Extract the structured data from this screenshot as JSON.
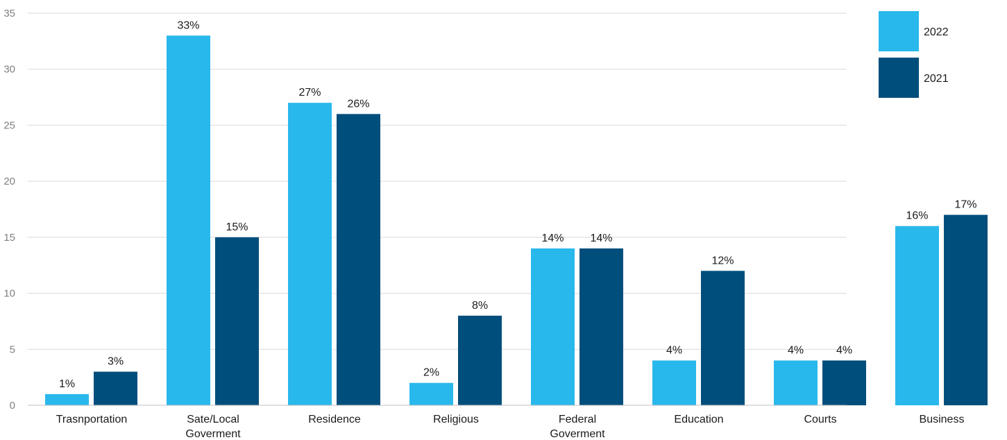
{
  "chart_data": {
    "type": "bar",
    "categories": [
      [
        "Trasnportation"
      ],
      [
        "Sate/Local",
        "Goverment"
      ],
      [
        "Residence"
      ],
      [
        "Religious"
      ],
      [
        "Federal",
        "Goverment"
      ],
      [
        "Education"
      ],
      [
        "Courts"
      ],
      [
        "Business"
      ]
    ],
    "series": [
      {
        "name": "2022",
        "color": "#29b8ec",
        "values": [
          1,
          33,
          27,
          2,
          14,
          4,
          4,
          16
        ],
        "labels": [
          "1%",
          "33%",
          "27%",
          "2%",
          "14%",
          "4%",
          "4%",
          "16%"
        ]
      },
      {
        "name": "2021",
        "color": "#004e7c",
        "values": [
          3,
          15,
          26,
          8,
          14,
          12,
          4,
          17
        ],
        "labels": [
          "3%",
          "15%",
          "26%",
          "8%",
          "14%",
          "12%",
          "4%",
          "17%"
        ]
      }
    ],
    "yticks": [
      "0",
      "5",
      "10",
      "15",
      "20",
      "25",
      "30",
      "35"
    ],
    "ylim": [
      0,
      35
    ],
    "grid": true,
    "legend": "top-right",
    "title": "",
    "xlabel": "",
    "ylabel": ""
  }
}
